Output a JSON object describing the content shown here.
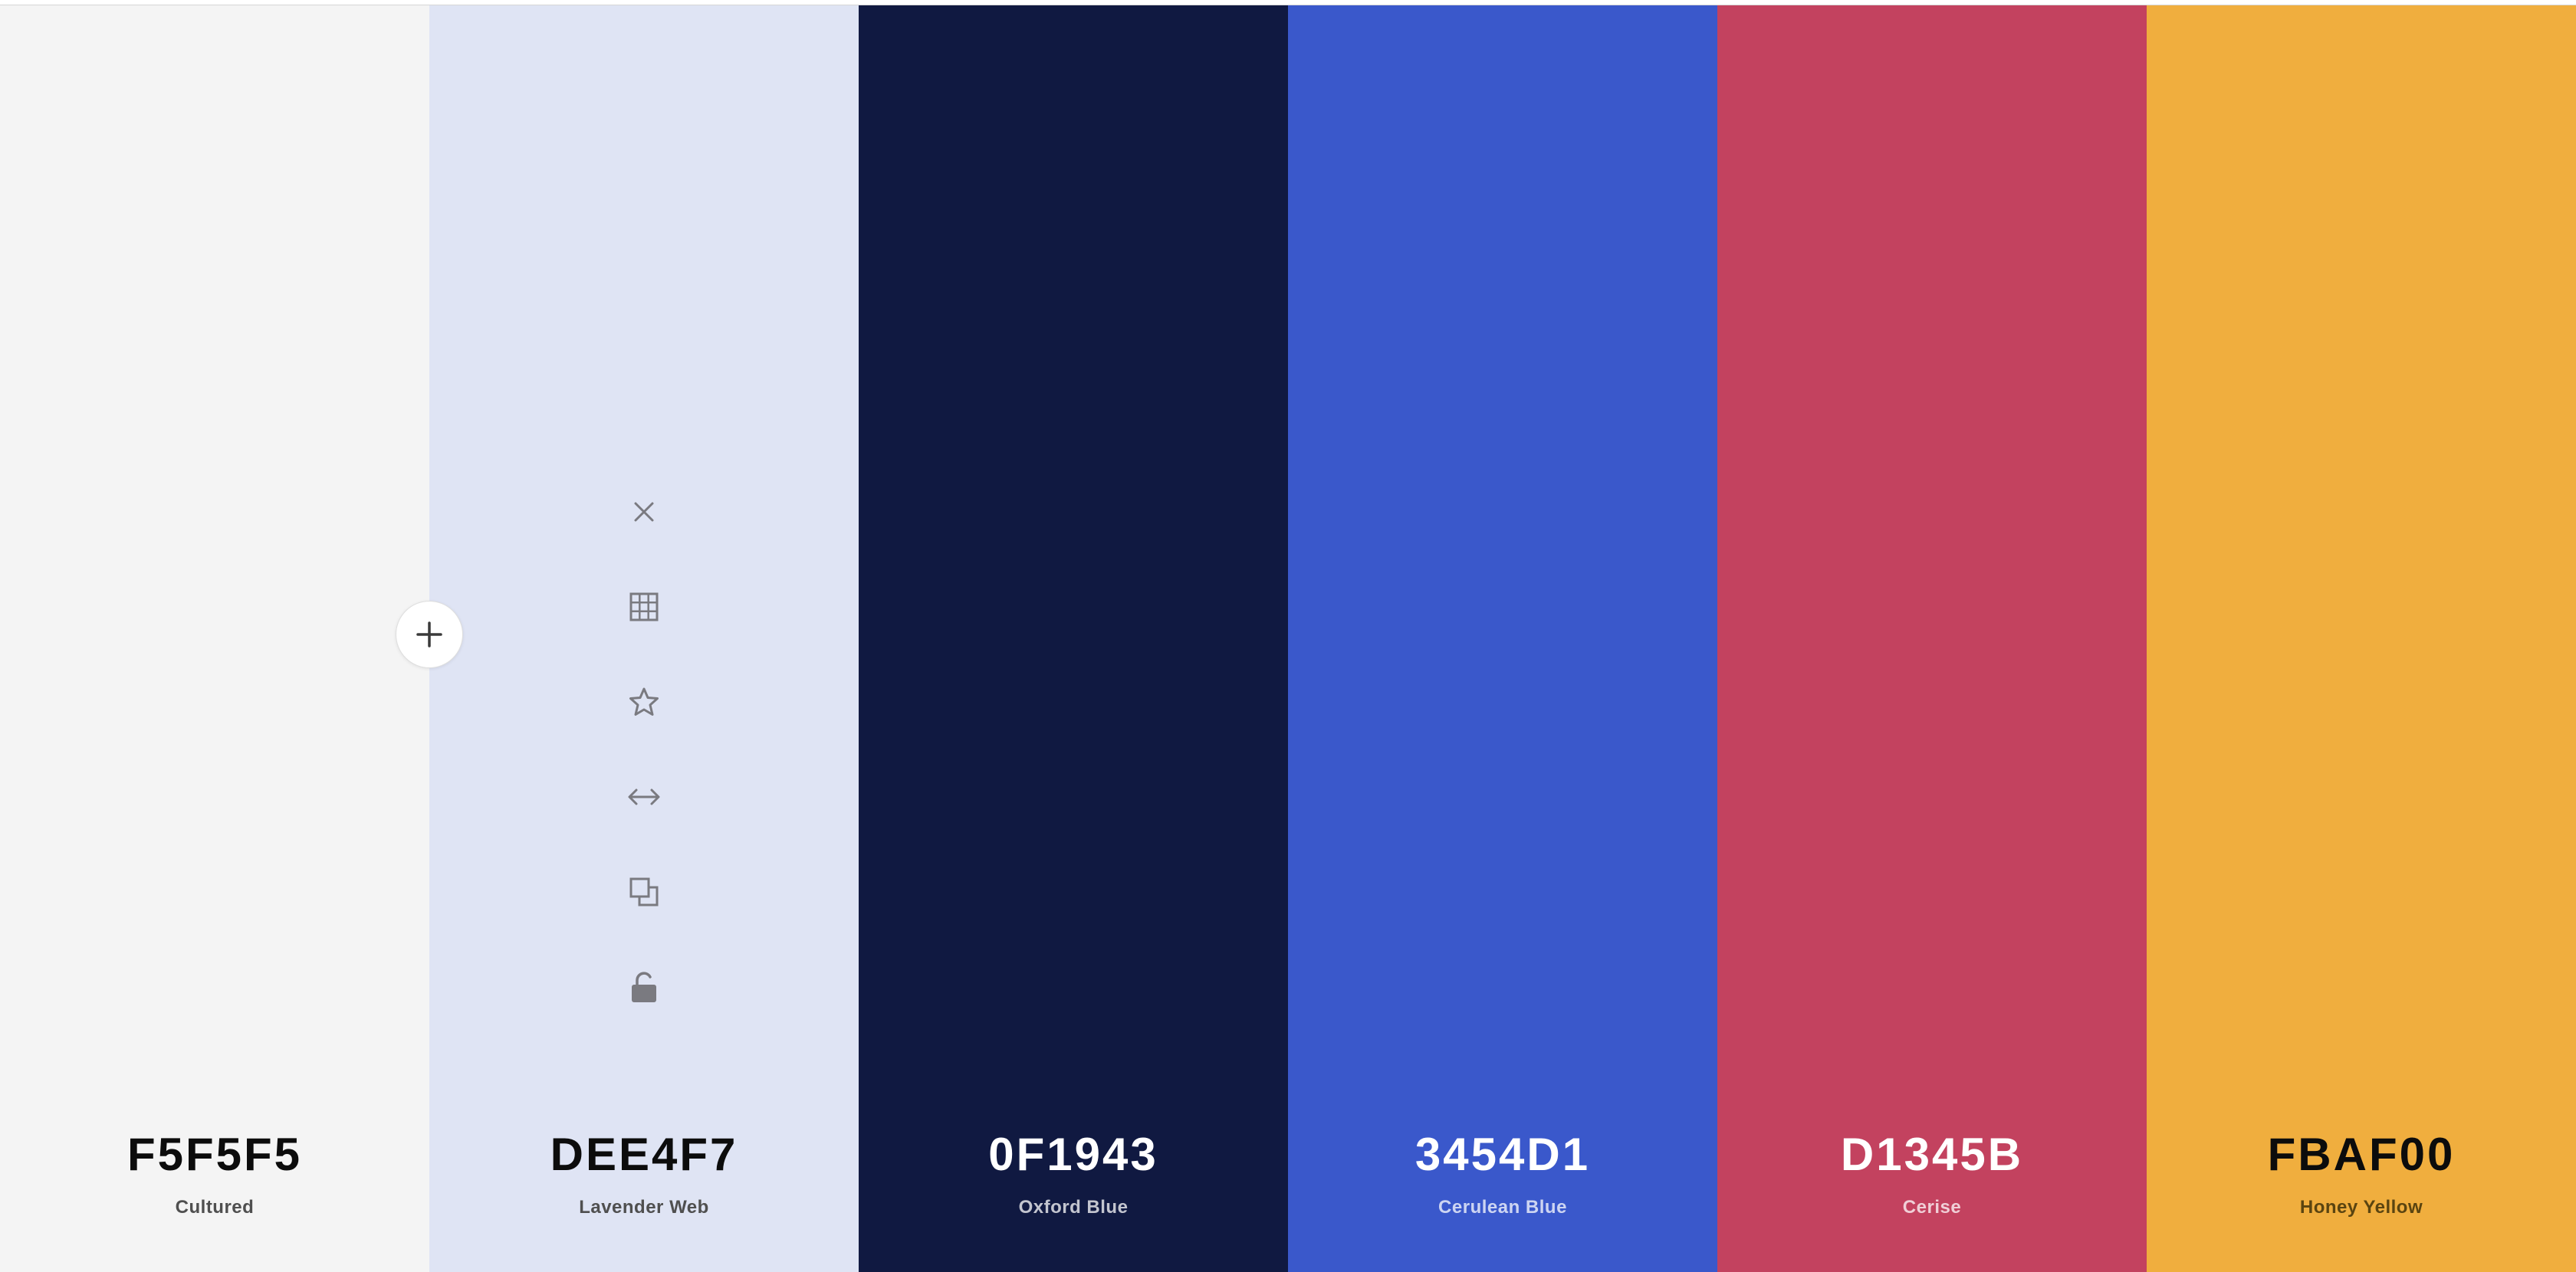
{
  "palette": {
    "colors": [
      {
        "hex": "F5F5F5",
        "name": "Cultured",
        "color": "#F5F5F5"
      },
      {
        "hex": "DEE4F7",
        "name": "Lavender Web",
        "color": "#DEE4F7"
      },
      {
        "hex": "0F1943",
        "name": "Oxford Blue",
        "color": "#0F1943"
      },
      {
        "hex": "3454D1",
        "name": "Cerulean Blue",
        "color": "#3454D1"
      },
      {
        "hex": "D1345B",
        "name": "Cerise",
        "color": "#D1345B"
      },
      {
        "hex": "FBAF00",
        "name": "Honey Yellow",
        "color": "#FBAF00"
      }
    ]
  },
  "toolbar": {
    "icons": [
      "close-icon",
      "grid-icon",
      "star-icon",
      "arrows-horizontal-icon",
      "copy-icon",
      "unlock-icon"
    ]
  },
  "add_button": {
    "icon": "plus-icon"
  }
}
